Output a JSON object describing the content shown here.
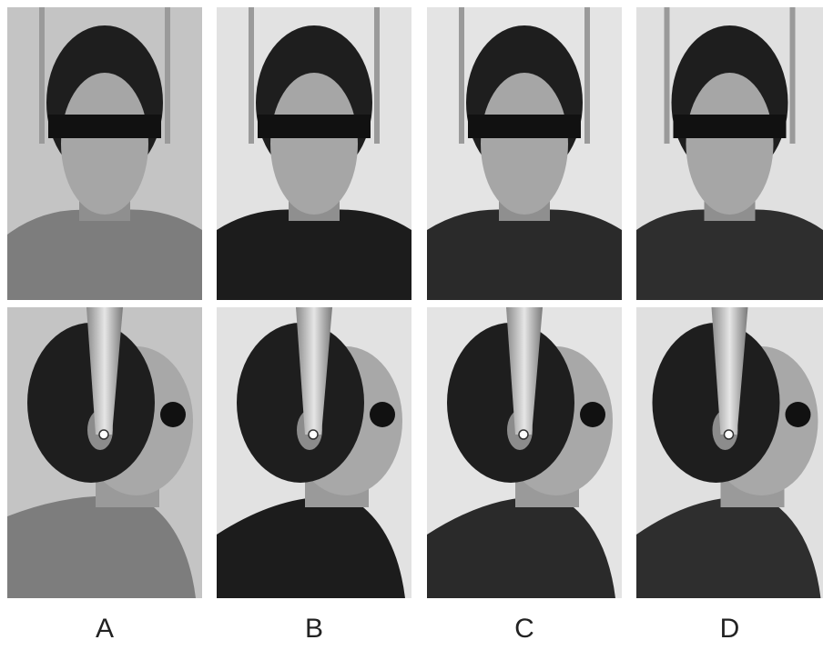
{
  "labels": [
    "A",
    "B",
    "C",
    "D"
  ]
}
